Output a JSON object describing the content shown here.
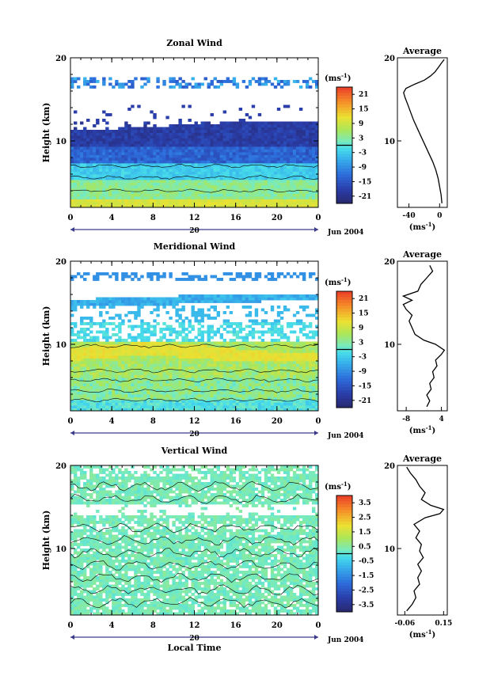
{
  "figure": {
    "shared": {
      "x_ticks": [
        "0",
        "4",
        "8",
        "12",
        "16",
        "20",
        "0"
      ],
      "y_ticks": [
        "20",
        "10"
      ],
      "y_label": "Height (km)",
      "day_label": "20",
      "month_label": "Jun 2004",
      "units": "(ms",
      "units_sup": "-1",
      "units_close": ")",
      "x_axis_label": "Local Time",
      "avg_unit": "(ms",
      "avg_unit_sup": "-1",
      "avg_unit_close": ")"
    },
    "panels": [
      {
        "title": "Zonal Wind",
        "colorbar_labels": [
          "21",
          "15",
          "9",
          "3",
          "-3",
          "-9",
          "-15",
          "-21"
        ],
        "avg_title": "Average",
        "avg_ticks": [
          "-40",
          "0"
        ]
      },
      {
        "title": "Meridional Wind",
        "colorbar_labels": [
          "21",
          "15",
          "9",
          "3",
          "-3",
          "-9",
          "-15",
          "-21"
        ],
        "avg_title": "Average",
        "avg_ticks": [
          "-8",
          "4"
        ]
      },
      {
        "title": "Vertical Wind",
        "colorbar_labels": [
          "3.5",
          "2.5",
          "1.5",
          "0.5",
          "-0.5",
          "-1.5",
          "-2.5",
          "-3.5"
        ],
        "avg_title": "Average",
        "avg_ticks": [
          "-0.06",
          "0.15"
        ]
      }
    ]
  },
  "chart_data": [
    {
      "type": "heatmap",
      "title": "Zonal Wind",
      "xlabel": "",
      "ylabel": "Height (km)",
      "x_ticks": [
        "0",
        "4",
        "8",
        "12",
        "16",
        "20",
        "0"
      ],
      "xlim": [
        0,
        24
      ],
      "ylim": [
        2,
        20
      ],
      "colorbar": {
        "unit": "ms^-1",
        "min": -24,
        "max": 24,
        "labels": [
          21,
          15,
          9,
          3,
          -3,
          -9,
          -15,
          -21
        ]
      },
      "profile": {
        "title": "Average",
        "xlim": [
          -55,
          10
        ],
        "x_ticks": [
          -40,
          0
        ],
        "points": [
          {
            "x": 3,
            "y": 2.5
          },
          {
            "x": 2,
            "y": 3.5
          },
          {
            "x": 0,
            "y": 4.5
          },
          {
            "x": -2,
            "y": 5.5
          },
          {
            "x": -5,
            "y": 6.5
          },
          {
            "x": -9,
            "y": 7.5
          },
          {
            "x": -14,
            "y": 8.5
          },
          {
            "x": -19,
            "y": 9.5
          },
          {
            "x": -24,
            "y": 10.5
          },
          {
            "x": -29,
            "y": 11.5
          },
          {
            "x": -34,
            "y": 12.5
          },
          {
            "x": -38,
            "y": 13.5
          },
          {
            "x": -42,
            "y": 14.5
          },
          {
            "x": -45,
            "y": 15.2
          },
          {
            "x": -47,
            "y": 15.8
          },
          {
            "x": -44,
            "y": 16.3
          },
          {
            "x": -33,
            "y": 16.8
          },
          {
            "x": -20,
            "y": 17.3
          },
          {
            "x": -12,
            "y": 17.8
          },
          {
            "x": -6,
            "y": 18.3
          },
          {
            "x": -2,
            "y": 18.8
          },
          {
            "x": 2,
            "y": 19.3
          },
          {
            "x": 6,
            "y": 19.8
          }
        ]
      }
    },
    {
      "type": "heatmap",
      "title": "Meridional Wind",
      "xlabel": "",
      "ylabel": "Height (km)",
      "x_ticks": [
        "0",
        "4",
        "8",
        "12",
        "16",
        "20",
        "0"
      ],
      "xlim": [
        0,
        24
      ],
      "ylim": [
        2,
        20
      ],
      "colorbar": {
        "unit": "ms^-1",
        "min": -24,
        "max": 24,
        "labels": [
          21,
          15,
          9,
          3,
          -3,
          -9,
          -15,
          -21
        ]
      },
      "profile": {
        "title": "Average",
        "xlim": [
          -11,
          6
        ],
        "x_ticks": [
          -8,
          4
        ],
        "points": [
          {
            "x": -1,
            "y": 2.5
          },
          {
            "x": 0,
            "y": 3.2
          },
          {
            "x": -1,
            "y": 3.9
          },
          {
            "x": 0.5,
            "y": 4.6
          },
          {
            "x": 0,
            "y": 5.3
          },
          {
            "x": 1.5,
            "y": 6
          },
          {
            "x": 1,
            "y": 6.7
          },
          {
            "x": 2.5,
            "y": 7.4
          },
          {
            "x": 2,
            "y": 8.1
          },
          {
            "x": 4,
            "y": 8.8
          },
          {
            "x": 5,
            "y": 9.3
          },
          {
            "x": 2,
            "y": 10
          },
          {
            "x": -2,
            "y": 10.5
          },
          {
            "x": -5,
            "y": 11.2
          },
          {
            "x": -6,
            "y": 12
          },
          {
            "x": -7,
            "y": 12.8
          },
          {
            "x": -6,
            "y": 13.5
          },
          {
            "x": -8,
            "y": 14.2
          },
          {
            "x": -9,
            "y": 14.8
          },
          {
            "x": -6,
            "y": 15.3
          },
          {
            "x": -9,
            "y": 15.8
          },
          {
            "x": -4,
            "y": 16.4
          },
          {
            "x": -3,
            "y": 17.2
          },
          {
            "x": -1,
            "y": 18
          },
          {
            "x": 1,
            "y": 18.8
          },
          {
            "x": 0,
            "y": 19.5
          }
        ]
      }
    },
    {
      "type": "heatmap",
      "title": "Vertical Wind",
      "xlabel": "Local Time",
      "ylabel": "Height (km)",
      "x_ticks": [
        "0",
        "4",
        "8",
        "12",
        "16",
        "20",
        "0"
      ],
      "xlim": [
        0,
        24
      ],
      "ylim": [
        2,
        20
      ],
      "colorbar": {
        "unit": "ms^-1",
        "min": -4,
        "max": 4,
        "labels": [
          3.5,
          2.5,
          1.5,
          0.5,
          -0.5,
          -1.5,
          -2.5,
          -3.5
        ]
      },
      "profile": {
        "title": "Average",
        "xlim": [
          -0.1,
          0.17
        ],
        "x_ticks": [
          -0.06,
          0.15
        ],
        "points": [
          {
            "x": -0.05,
            "y": 2.5
          },
          {
            "x": -0.02,
            "y": 3.3
          },
          {
            "x": 0,
            "y": 4.1
          },
          {
            "x": -0.01,
            "y": 4.9
          },
          {
            "x": 0.02,
            "y": 5.7
          },
          {
            "x": 0.01,
            "y": 6.5
          },
          {
            "x": 0.03,
            "y": 7.3
          },
          {
            "x": 0.01,
            "y": 8.1
          },
          {
            "x": 0.04,
            "y": 8.9
          },
          {
            "x": 0.02,
            "y": 9.7
          },
          {
            "x": 0.03,
            "y": 10.5
          },
          {
            "x": 0,
            "y": 11.3
          },
          {
            "x": 0.02,
            "y": 12.1
          },
          {
            "x": -0.01,
            "y": 12.9
          },
          {
            "x": 0.05,
            "y": 13.7
          },
          {
            "x": 0.13,
            "y": 14.2
          },
          {
            "x": 0.15,
            "y": 14.7
          },
          {
            "x": 0.08,
            "y": 15.2
          },
          {
            "x": 0.03,
            "y": 15.9
          },
          {
            "x": 0.05,
            "y": 16.7
          },
          {
            "x": 0.02,
            "y": 17.5
          },
          {
            "x": 0,
            "y": 18.3
          },
          {
            "x": -0.03,
            "y": 19.1
          },
          {
            "x": -0.05,
            "y": 19.8
          }
        ]
      }
    }
  ]
}
